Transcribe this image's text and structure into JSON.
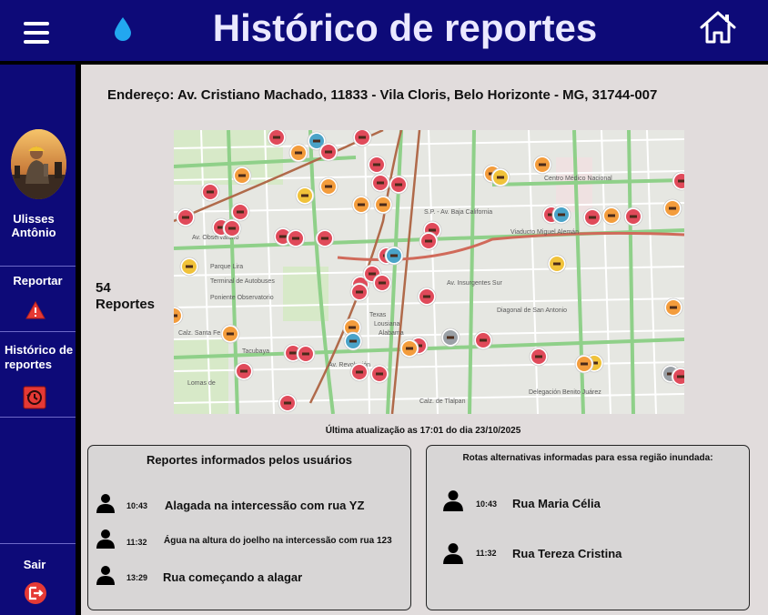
{
  "header": {
    "title": "Histórico de reportes"
  },
  "sidebar": {
    "user_name": "Ulisses Antônio",
    "items": [
      {
        "label": "Reportar"
      },
      {
        "label": "Histórico de reportes"
      }
    ],
    "logout_label": "Sair"
  },
  "address": "Endereço: Av. Cristiano Machado, 11833 - Vila Cloris, Belo Horizonte - MG, 31744-007",
  "report_count": {
    "number": "54",
    "label": "Reportes"
  },
  "map": {
    "labels": [
      "S.P. - Av. Baja California",
      "Viaducto Miguel Alemán",
      "Parque Lira",
      "Terminal de Autobuses",
      "Poniente Observatorio",
      "Delegación Benito Juárez",
      "Centro Médico Nacional",
      "Calz. Santa Fe",
      "Lomas de",
      "Tacubaya",
      "Texas",
      "Lousiana",
      "Alabama",
      "Av. Revolución",
      "Diagonal de San Antonio",
      "Av. Observatorio",
      "Av. Insurgentes Sur",
      "Calz. de Tlalpan"
    ]
  },
  "last_update": "Última atualização as 17:01 do dia 23/10/2025",
  "user_reports": {
    "title": "Reportes informados pelos usuários",
    "items": [
      {
        "time": "10:43",
        "text": "Alagada na intercessão com rua YZ"
      },
      {
        "time": "11:32",
        "text": "Água na altura do joelho na intercessão com rua 123"
      },
      {
        "time": "13:29",
        "text": "Rua começando a alagar"
      }
    ]
  },
  "alt_routes": {
    "title": "Rotas alternativas informadas para essa região inundada:",
    "items": [
      {
        "time": "10:43",
        "text": "Rua Maria Célia"
      },
      {
        "time": "11:32",
        "text": "Rua Tereza Cristina"
      }
    ]
  },
  "colors": {
    "nav": "#0d0a78",
    "background": "#e1dcdc",
    "alert": "#e53935",
    "pin_red": "#e04a5a",
    "pin_orange": "#f39c3c",
    "pin_yellow": "#f0c23a",
    "pin_blue": "#4aa3c8"
  },
  "icons": [
    "menu-icon",
    "water-drop-icon",
    "home-icon",
    "warning-icon",
    "history-icon",
    "logout-icon",
    "person-icon",
    "map-pin-icon"
  ]
}
